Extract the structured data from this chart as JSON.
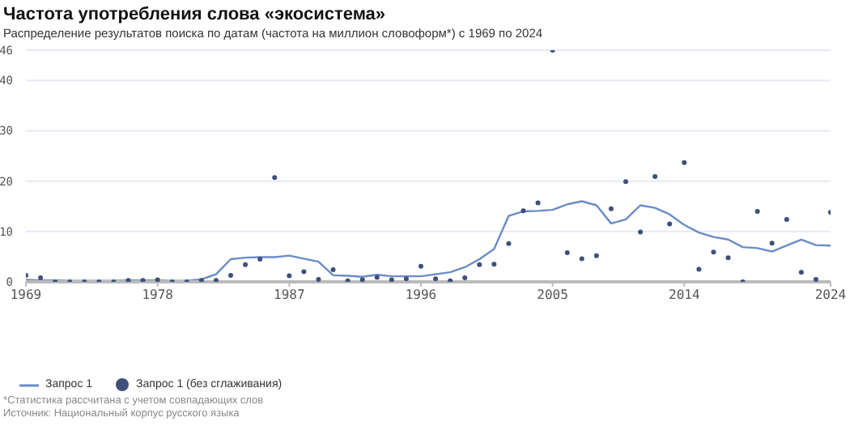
{
  "chart_data": {
    "type": "line",
    "title": "Частота употребления слова «экосистема»",
    "subtitle": "Распределение результатов поиска по датам (частота на миллион словоформ*) с 1969 по 2024",
    "x": [
      1969,
      1970,
      1971,
      1972,
      1973,
      1974,
      1975,
      1976,
      1977,
      1978,
      1979,
      1980,
      1981,
      1982,
      1983,
      1984,
      1985,
      1986,
      1987,
      1988,
      1989,
      1990,
      1991,
      1992,
      1993,
      1994,
      1995,
      1996,
      1997,
      1998,
      1999,
      2000,
      2001,
      2002,
      2003,
      2004,
      2005,
      2006,
      2007,
      2008,
      2009,
      2010,
      2011,
      2012,
      2013,
      2014,
      2015,
      2016,
      2017,
      2018,
      2019,
      2020,
      2021,
      2022,
      2023,
      2024
    ],
    "series": [
      {
        "name": "Запрос 1",
        "marker": "none",
        "color": "#6a8cc6",
        "values": [
          0.4,
          0.3,
          0.3,
          0.2,
          0.2,
          0.2,
          0.2,
          0.3,
          0.3,
          0.3,
          0.2,
          0.2,
          0.5,
          1.5,
          4.5,
          4.8,
          4.9,
          4.9,
          5.2,
          4.6,
          4.0,
          1.3,
          1.2,
          1.0,
          1.4,
          1.1,
          1.1,
          1.1,
          1.5,
          1.9,
          2.9,
          4.5,
          6.5,
          13.1,
          14.0,
          14.1,
          14.3,
          15.4,
          16.0,
          15.2,
          11.6,
          12.4,
          15.2,
          14.7,
          13.4,
          11.3,
          9.8,
          8.9,
          8.4,
          6.9,
          6.7,
          6.0,
          7.2,
          8.4,
          7.3,
          7.2
        ]
      },
      {
        "name": "Запрос 1 (без сглаживания)",
        "type": "scatter",
        "marker": "circle",
        "color": "#3f4f7c",
        "values": [
          1.3,
          0.8,
          0,
          0,
          0,
          0,
          0,
          0.3,
          0.3,
          0.4,
          0,
          0,
          0.3,
          0.3,
          1.3,
          3.4,
          4.5,
          20.7,
          1.2,
          2.0,
          0.5,
          2.4,
          0.2,
          0.4,
          0.9,
          0.4,
          0.6,
          3.1,
          0.6,
          0.2,
          0.8,
          3.4,
          3.5,
          7.6,
          14.1,
          15.7,
          46,
          5.8,
          4.6,
          5.2,
          14.5,
          19.9,
          9.9,
          20.9,
          11.5,
          23.7,
          2.5,
          5.9,
          4.8,
          0,
          14.0,
          7.7,
          12.4,
          1.9,
          0.5,
          13.8
        ]
      }
    ],
    "xlim": [
      1969,
      2024
    ],
    "xticks": [
      1969,
      1978,
      1987,
      1996,
      2005,
      2014,
      2024
    ],
    "ylim": [
      0,
      46
    ],
    "yticks": [
      0,
      10,
      20,
      30,
      40,
      46
    ],
    "grid": "y",
    "legend": "bottom",
    "annotations": [
      "*Статистика рассчитана с учетом совпадающих слов",
      "Источник: Национальный корпус русского языка"
    ]
  }
}
